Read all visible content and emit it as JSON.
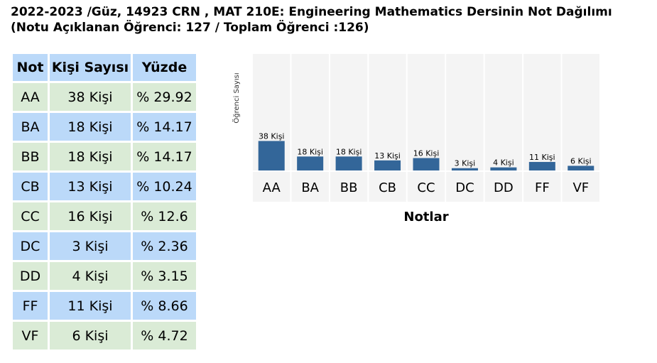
{
  "title_line1": "2022-2023 /Güz, 14923 CRN , MAT 210E: Engineering Mathematics Dersinin Not Dağılımı",
  "title_line2": "(Notu Açıklanan Öğrenci: 127 / Toplam Öğrenci :126)",
  "table": {
    "headers": [
      "Not",
      "Kişi Sayısı",
      "Yüzde"
    ],
    "rows": [
      [
        "AA",
        "38 Kişi",
        "% 29.92"
      ],
      [
        "BA",
        "18 Kişi",
        "% 14.17"
      ],
      [
        "BB",
        "18 Kişi",
        "% 14.17"
      ],
      [
        "CB",
        "13 Kişi",
        "% 10.24"
      ],
      [
        "CC",
        "16 Kişi",
        "% 12.6"
      ],
      [
        "DC",
        "3 Kişi",
        "% 2.36"
      ],
      [
        "DD",
        "4 Kişi",
        "% 3.15"
      ],
      [
        "FF",
        "11 Kişi",
        "% 8.66"
      ],
      [
        "VF",
        "6 Kişi",
        "% 4.72"
      ]
    ]
  },
  "chart_data": {
    "type": "bar",
    "categories": [
      "AA",
      "BA",
      "BB",
      "CB",
      "CC",
      "DC",
      "DD",
      "FF",
      "VF"
    ],
    "values": [
      38,
      18,
      18,
      13,
      16,
      3,
      4,
      11,
      6
    ],
    "data_labels": [
      "38 Kişi",
      "18 Kişi",
      "18 Kişi",
      "13 Kişi",
      "16 Kişi",
      "3 Kişi",
      "4 Kişi",
      "11 Kişi",
      "6 Kişi"
    ],
    "xlabel": "Notlar",
    "ylabel": "Öğrenci Sayısı",
    "ylim": [
      0,
      150
    ],
    "bar_color": "#336699",
    "plot_background": "#f4f4f4",
    "grid": false
  }
}
